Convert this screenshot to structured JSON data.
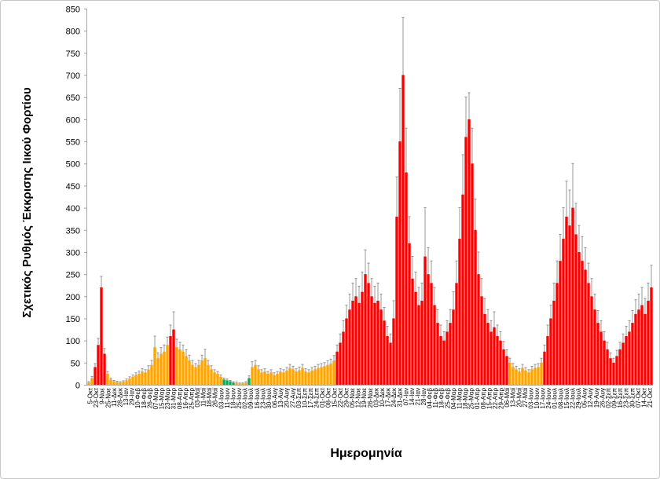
{
  "chart_data": {
    "type": "bar",
    "title": "",
    "xlabel": "Ημερομηνία",
    "ylabel": "Σχετικός Ρυθμός Έκκρισης Ιικού Φορτίου",
    "ylim": [
      0,
      850
    ],
    "y_ticks": [
      0,
      50,
      100,
      150,
      200,
      250,
      300,
      350,
      400,
      450,
      500,
      550,
      600,
      650,
      700,
      750,
      800,
      850
    ],
    "x_tick_labels": [
      "5-Οκτ",
      "23-Οκτ",
      "9-Νοε",
      "25-Νοε",
      "11-Δεκ",
      "28-Δεκ",
      "13-Ιαν",
      "29-Ιαν",
      "10-Φεβ",
      "18-Φεβ",
      "26-Φεβ",
      "07-Μαρ",
      "15-Μαρ",
      "23-Μαρ",
      "31-Μαρ",
      "08-Απρ",
      "16-Απρ",
      "25-Απρ",
      "03-Μαϊ",
      "11-Μαϊ",
      "18-Μαϊ",
      "26-Μαϊ",
      "03-Ιουν",
      "11-Ιουν",
      "18-Ιουν",
      "25-Ιουν",
      "02-Ιουλ",
      "09-Ιουλ",
      "16-Ιουλ",
      "23-Ιουλ",
      "30-Ιουλ",
      "06-Αυγ",
      "13-Αυγ",
      "20-Αυγ",
      "27-Αυγ",
      "03-Σεπ",
      "10-Σεπ",
      "17-Σεπ",
      "24-Σεπ",
      "01-Οκτ",
      "08-Οκτ",
      "15-Οκτ",
      "22-Οκτ",
      "29-Οκτ",
      "05-Νοε",
      "12-Νοε",
      "19-Νοε",
      "26-Νοε",
      "03-Δεκ",
      "10-Δεκ",
      "17-Δεκ",
      "24-Δεκ",
      "31-Δεκ",
      "07-Ιαν",
      "14-Ιαν",
      "21-Ιαν",
      "28-Ιαν",
      "04-Φεβ",
      "11-Φεβ",
      "18-Φεβ",
      "25-Φεβ",
      "04-Μαρ",
      "11-Μαρ",
      "18-Μαρ",
      "25-Μαρ",
      "01-Απρ",
      "08-Απρ",
      "15-Απρ",
      "22-Απρ",
      "29-Απρ",
      "06-Μαϊ",
      "13-Μαϊ",
      "20-Μαϊ",
      "27-Μαϊ",
      "03-Ιουν",
      "10-Ιουν",
      "17-Ιουν",
      "24-Ιουν",
      "01-Ιουλ",
      "08-Ιουλ",
      "15-Ιουλ",
      "22-Ιουλ",
      "29-Ιουλ",
      "05-Αυγ",
      "12-Αυγ",
      "19-Αυγ",
      "26-Αυγ",
      "02-Σεπ",
      "09-Σεπ",
      "16-Σεπ",
      "23-Σεπ",
      "30-Σεπ",
      "07-Οκτ",
      "14-Οκτ",
      "21-Οκτ"
    ],
    "values": [
      5,
      15,
      40,
      90,
      220,
      70,
      25,
      12,
      8,
      6,
      5,
      7,
      10,
      14,
      18,
      22,
      25,
      30,
      28,
      35,
      45,
      85,
      60,
      70,
      75,
      90,
      110,
      125,
      85,
      80,
      75,
      65,
      55,
      45,
      40,
      45,
      55,
      60,
      45,
      35,
      28,
      25,
      18,
      12,
      10,
      8,
      5,
      4,
      3,
      3,
      5,
      15,
      40,
      45,
      35,
      28,
      30,
      25,
      28,
      22,
      25,
      30,
      28,
      32,
      38,
      35,
      30,
      33,
      38,
      30,
      28,
      32,
      35,
      38,
      40,
      42,
      45,
      48,
      55,
      75,
      95,
      120,
      150,
      170,
      190,
      200,
      185,
      210,
      250,
      230,
      200,
      185,
      190,
      170,
      145,
      110,
      95,
      150,
      380,
      550,
      700,
      480,
      320,
      240,
      210,
      180,
      190,
      290,
      250,
      230,
      180,
      140,
      110,
      100,
      120,
      140,
      170,
      230,
      330,
      430,
      560,
      600,
      500,
      350,
      250,
      200,
      160,
      140,
      120,
      130,
      110,
      100,
      80,
      65,
      50,
      40,
      35,
      30,
      38,
      32,
      28,
      35,
      38,
      40,
      50,
      75,
      110,
      150,
      190,
      230,
      280,
      330,
      380,
      360,
      400,
      340,
      300,
      280,
      260,
      230,
      200,
      170,
      140,
      120,
      100,
      80,
      60,
      50,
      65,
      80,
      95,
      110,
      120,
      140,
      160,
      170,
      180,
      160,
      190,
      220
    ],
    "error_upper": [
      2,
      4,
      8,
      15,
      25,
      12,
      5,
      3,
      2,
      2,
      2,
      2,
      3,
      4,
      4,
      5,
      6,
      6,
      6,
      8,
      10,
      25,
      12,
      14,
      15,
      18,
      25,
      40,
      18,
      16,
      15,
      14,
      12,
      10,
      8,
      10,
      12,
      20,
      10,
      8,
      6,
      5,
      4,
      3,
      3,
      2,
      2,
      2,
      1,
      1,
      2,
      5,
      12,
      10,
      8,
      6,
      6,
      5,
      6,
      5,
      5,
      6,
      6,
      7,
      8,
      7,
      6,
      7,
      8,
      6,
      6,
      7,
      7,
      8,
      8,
      8,
      9,
      10,
      11,
      15,
      20,
      25,
      30,
      35,
      40,
      40,
      38,
      45,
      55,
      45,
      40,
      38,
      40,
      35,
      30,
      22,
      20,
      40,
      90,
      120,
      130,
      100,
      60,
      50,
      45,
      40,
      40,
      110,
      60,
      50,
      40,
      30,
      25,
      20,
      25,
      30,
      40,
      50,
      70,
      90,
      90,
      60,
      80,
      70,
      50,
      40,
      35,
      30,
      25,
      35,
      25,
      20,
      18,
      14,
      10,
      8,
      7,
      6,
      8,
      7,
      6,
      7,
      8,
      8,
      10,
      15,
      25,
      30,
      40,
      50,
      60,
      70,
      80,
      80,
      100,
      70,
      60,
      55,
      50,
      45,
      40,
      35,
      28,
      25,
      20,
      16,
      12,
      10,
      13,
      16,
      20,
      22,
      25,
      28,
      32,
      35,
      40,
      35,
      40,
      50
    ],
    "bar_colors": [
      "o",
      "o",
      "r",
      "r",
      "r",
      "r",
      "o",
      "o",
      "o",
      "o",
      "o",
      "o",
      "o",
      "o",
      "o",
      "o",
      "o",
      "o",
      "o",
      "o",
      "o",
      "o",
      "o",
      "o",
      "o",
      "o",
      "r",
      "r",
      "o",
      "o",
      "o",
      "o",
      "o",
      "o",
      "o",
      "o",
      "o",
      "o",
      "o",
      "o",
      "o",
      "o",
      "o",
      "g",
      "g",
      "g",
      "g",
      "o",
      "o",
      "o",
      "o",
      "g",
      "o",
      "o",
      "o",
      "o",
      "o",
      "o",
      "o",
      "o",
      "o",
      "o",
      "o",
      "o",
      "o",
      "o",
      "o",
      "o",
      "o",
      "o",
      "o",
      "o",
      "o",
      "o",
      "o",
      "o",
      "o",
      "o",
      "o",
      "r",
      "r",
      "r",
      "r",
      "r",
      "r",
      "r",
      "r",
      "r",
      "r",
      "r",
      "r",
      "r",
      "r",
      "r",
      "r",
      "r",
      "r",
      "r",
      "r",
      "r",
      "r",
      "r",
      "r",
      "r",
      "r",
      "r",
      "r",
      "r",
      "r",
      "r",
      "r",
      "r",
      "r",
      "r",
      "r",
      "r",
      "r",
      "r",
      "r",
      "r",
      "r",
      "r",
      "r",
      "r",
      "r",
      "r",
      "r",
      "r",
      "r",
      "r",
      "r",
      "r",
      "r",
      "r",
      "o",
      "o",
      "o",
      "o",
      "o",
      "o",
      "o",
      "o",
      "o",
      "o",
      "o",
      "r",
      "r",
      "r",
      "r",
      "r",
      "r",
      "r",
      "r",
      "r",
      "r",
      "r",
      "r",
      "r",
      "r",
      "r",
      "r",
      "r",
      "r",
      "r",
      "r",
      "r",
      "r",
      "r",
      "r",
      "r",
      "r",
      "r",
      "r",
      "r",
      "r",
      "r",
      "r",
      "r",
      "r",
      "r"
    ],
    "colors": {
      "r": "#ff0000",
      "o": "#ffa500",
      "g": "#00b050",
      "error": "#7f7f7f",
      "axis": "#a6a6a6"
    },
    "grid": false,
    "legend": "none"
  }
}
